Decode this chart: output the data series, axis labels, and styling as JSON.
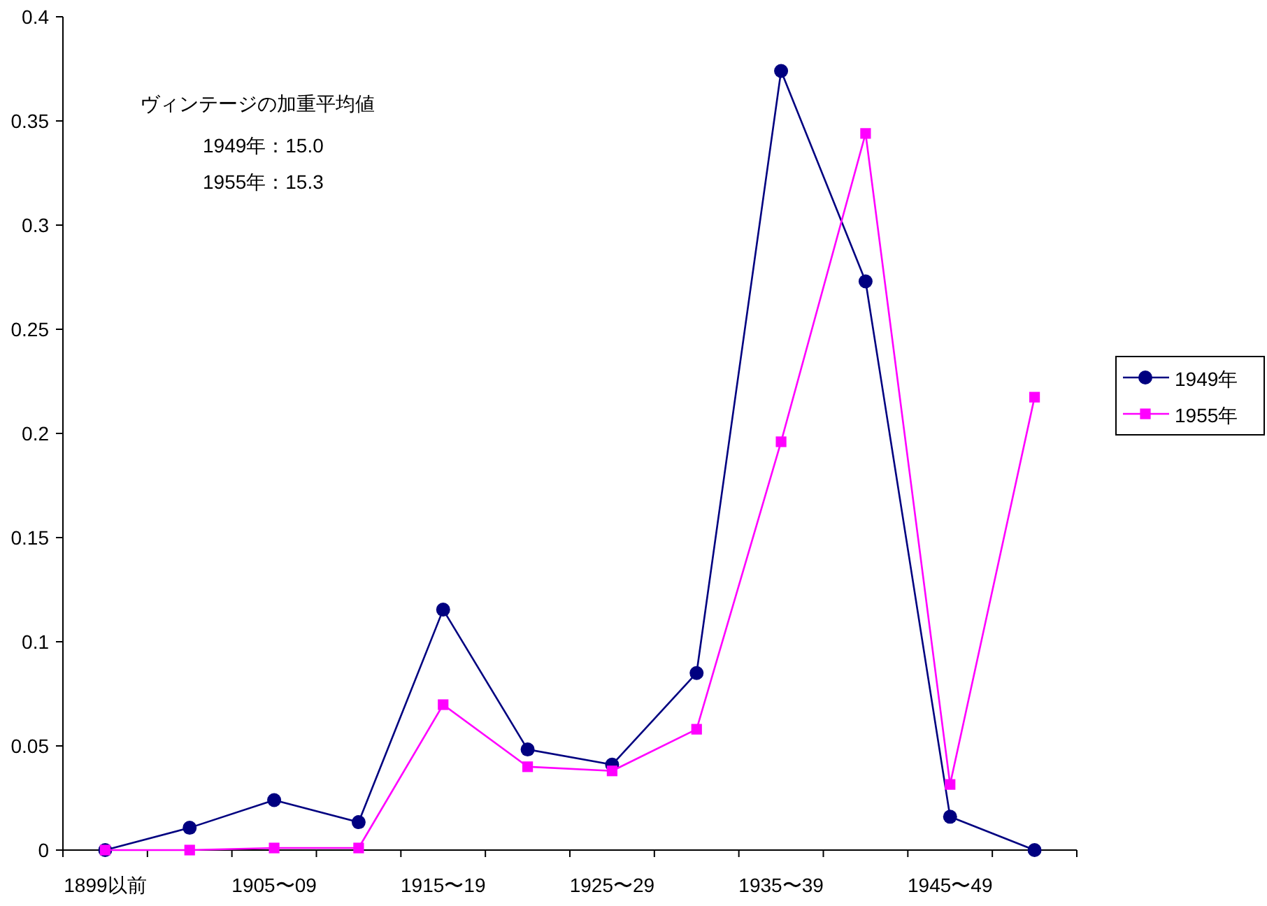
{
  "chart_data": {
    "type": "line",
    "categories": [
      "1899以前",
      null,
      "1905〜09",
      null,
      "1915〜19",
      null,
      "1925〜29",
      null,
      "1935〜39",
      null,
      "1945〜49",
      null
    ],
    "series": [
      {
        "name": "1949年",
        "color": "#000080",
        "marker": "circle",
        "values": [
          0,
          0.0107,
          0.024,
          0.0134,
          0.1154,
          0.0483,
          0.041,
          0.085,
          0.374,
          0.273,
          0.016,
          0
        ]
      },
      {
        "name": "1955年",
        "color": "#ff00ff",
        "marker": "square",
        "values": [
          0,
          0,
          0.001,
          0.001,
          0.0698,
          0.04,
          0.038,
          0.058,
          0.196,
          0.344,
          0.0315,
          0.2174
        ]
      }
    ],
    "ylim": [
      0,
      0.4
    ],
    "yticks": [
      0,
      0.05,
      0.1,
      0.15,
      0.2,
      0.25,
      0.3,
      0.35,
      0.4
    ],
    "annotations": [
      "ヴィンテージの加重平均値",
      "1949年：15.0",
      "1955年：15.3"
    ],
    "legend": "right",
    "grid": false
  }
}
